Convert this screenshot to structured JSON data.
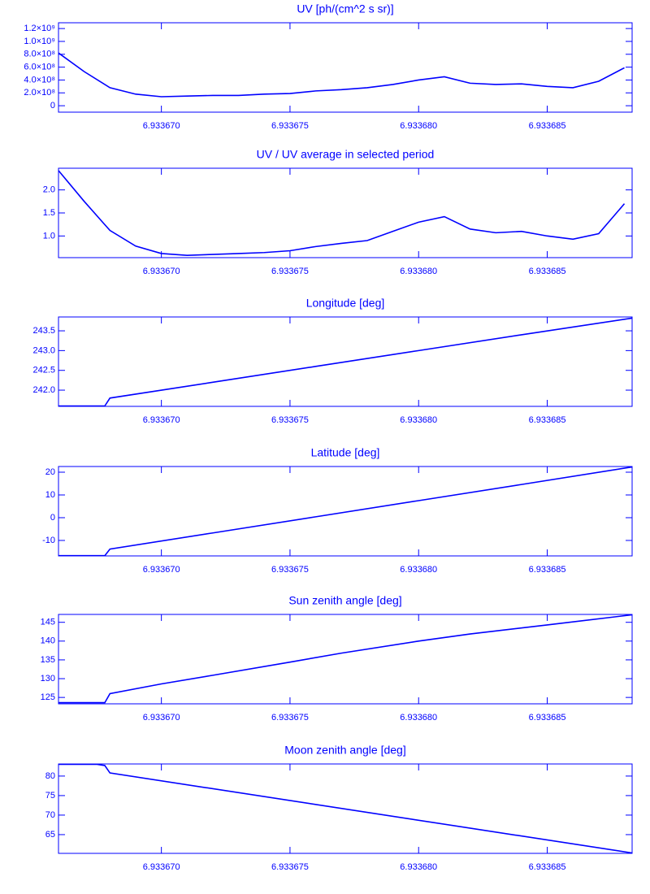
{
  "chart_data": [
    {
      "type": "line",
      "title": "UV [ph/(cm^2 s sr)]",
      "color": "#0000ff",
      "x": [
        6.933666,
        6.933667,
        6.933668,
        6.933669,
        6.93367,
        6.933671,
        6.933672,
        6.933673,
        6.933674,
        6.933675,
        6.933676,
        6.933677,
        6.933678,
        6.933679,
        6.93368,
        6.933681,
        6.933682,
        6.933683,
        6.933684,
        6.933685,
        6.933686,
        6.933687,
        6.933688
      ],
      "values": [
        820000000,
        530000000,
        280000000,
        180000000,
        140000000,
        150000000,
        160000000,
        160000000,
        180000000,
        190000000,
        230000000,
        250000000,
        280000000,
        330000000,
        400000000,
        450000000,
        350000000,
        330000000,
        340000000,
        300000000,
        280000000,
        380000000,
        590000000
      ],
      "xlim": [
        6.933666,
        6.9336883
      ],
      "xticks": [
        {
          "value": 6.93367,
          "label": "6.933670"
        },
        {
          "value": 6.933675,
          "label": "6.933675"
        },
        {
          "value": 6.93368,
          "label": "6.933680"
        },
        {
          "value": 6.933685,
          "label": "6.933685"
        }
      ],
      "ylim": [
        -100000000,
        1290000000
      ],
      "yticks": [
        0,
        {
          "value": 200000000,
          "label": "2.0×10⁸"
        },
        {
          "value": 400000000,
          "label": "4.0×10⁸"
        },
        {
          "value": 600000000,
          "label": "6.0×10⁸"
        },
        {
          "value": 800000000,
          "label": "8.0×10⁸"
        },
        {
          "value": 1000000000,
          "label": "1.0×10⁹"
        },
        {
          "value": 1200000000,
          "label": "1.2×10⁹"
        }
      ]
    },
    {
      "type": "line",
      "title": "UV / UV average in selected period",
      "color": "#0000ff",
      "x": [
        6.933666,
        6.933667,
        6.933668,
        6.933669,
        6.93367,
        6.933671,
        6.933672,
        6.933673,
        6.933674,
        6.933675,
        6.933676,
        6.933677,
        6.933678,
        6.933679,
        6.93368,
        6.933681,
        6.933682,
        6.933683,
        6.933684,
        6.933685,
        6.933686,
        6.933687,
        6.933688
      ],
      "values": [
        2.42,
        1.75,
        1.12,
        0.78,
        0.62,
        0.58,
        0.6,
        0.62,
        0.64,
        0.68,
        0.77,
        0.84,
        0.9,
        1.1,
        1.3,
        1.42,
        1.15,
        1.07,
        1.1,
        1.0,
        0.93,
        1.05,
        1.7
      ],
      "xlim": [
        6.933666,
        6.9336883
      ],
      "xticks": [
        {
          "value": 6.93367,
          "label": "6.933670"
        },
        {
          "value": 6.933675,
          "label": "6.933675"
        },
        {
          "value": 6.93368,
          "label": "6.933680"
        },
        {
          "value": 6.933685,
          "label": "6.933685"
        }
      ],
      "ylim": [
        0.53,
        2.47
      ],
      "yticks": [
        {
          "value": 1,
          "label": "1.0"
        },
        1.5,
        {
          "value": 2,
          "label": "2.0"
        }
      ]
    },
    {
      "type": "line",
      "title": "Longitude [deg]",
      "color": "#0000ff",
      "x": [
        6.933666,
        6.9336678,
        6.933668,
        6.933672,
        6.933676,
        6.93368,
        6.933684,
        6.9336883
      ],
      "values": [
        241.6,
        241.6,
        241.8,
        242.2,
        242.6,
        243.0,
        243.4,
        243.82
      ],
      "xlim": [
        6.933666,
        6.9336883
      ],
      "xticks": [
        {
          "value": 6.93367,
          "label": "6.933670"
        },
        {
          "value": 6.933675,
          "label": "6.933675"
        },
        {
          "value": 6.93368,
          "label": "6.933680"
        },
        {
          "value": 6.933685,
          "label": "6.933685"
        }
      ],
      "ylim": [
        241.59,
        243.85
      ],
      "yticks": [
        {
          "value": 242,
          "label": "242.0"
        },
        242.5,
        {
          "value": 243,
          "label": "243.0"
        },
        243.5
      ]
    },
    {
      "type": "line",
      "title": "Latitude [deg]",
      "color": "#0000ff",
      "x": [
        6.933666,
        6.9336678,
        6.933668,
        6.933672,
        6.933676,
        6.93368,
        6.933684,
        6.9336883
      ],
      "values": [
        -16.7,
        -16.7,
        -13.8,
        -6.7,
        0.4,
        7.5,
        14.6,
        22.3
      ],
      "xlim": [
        6.933666,
        6.9336883
      ],
      "xticks": [
        {
          "value": 6.93367,
          "label": "6.933670"
        },
        {
          "value": 6.933675,
          "label": "6.933675"
        },
        {
          "value": 6.93368,
          "label": "6.933680"
        },
        {
          "value": 6.933685,
          "label": "6.933685"
        }
      ],
      "ylim": [
        -16.8,
        22.5
      ],
      "yticks": [
        -10,
        0,
        10,
        20
      ]
    },
    {
      "type": "line",
      "title": "Sun zenith angle [deg]",
      "color": "#0000ff",
      "x": [
        6.933666,
        6.9336678,
        6.933668,
        6.93367,
        6.933672,
        6.933675,
        6.933677,
        6.93368,
        6.933682,
        6.933685,
        6.9336883
      ],
      "values": [
        123.6,
        123.6,
        126,
        128.6,
        130.9,
        134.4,
        136.8,
        140,
        141.9,
        144.3,
        147.0
      ],
      "xlim": [
        6.933666,
        6.9336883
      ],
      "xticks": [
        {
          "value": 6.93367,
          "label": "6.933670"
        },
        {
          "value": 6.933675,
          "label": "6.933675"
        },
        {
          "value": 6.93368,
          "label": "6.933680"
        },
        {
          "value": 6.933685,
          "label": "6.933685"
        }
      ],
      "ylim": [
        123.3,
        147.1
      ],
      "yticks": [
        125,
        130,
        135,
        140,
        145
      ]
    },
    {
      "type": "line",
      "title": "Moon zenith angle [deg]",
      "color": "#0000ff",
      "x": [
        6.933666,
        6.9336675,
        6.9336678,
        6.933668,
        6.9336883
      ],
      "values": [
        83,
        83,
        82.7,
        80.8,
        60.3
      ],
      "xlim": [
        6.933666,
        6.9336883
      ],
      "xticks": [
        {
          "value": 6.93367,
          "label": "6.933670"
        },
        {
          "value": 6.933675,
          "label": "6.933675"
        },
        {
          "value": 6.93368,
          "label": "6.933680"
        },
        {
          "value": 6.933685,
          "label": "6.933685"
        }
      ],
      "ylim": [
        60.2,
        83.1
      ],
      "yticks": [
        65,
        70,
        75,
        80
      ]
    }
  ]
}
